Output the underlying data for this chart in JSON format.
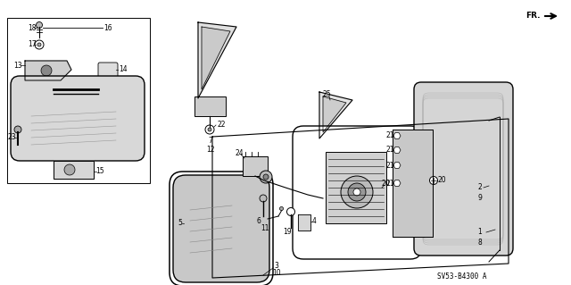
{
  "bg_color": "#ffffff",
  "line_color": "#000000",
  "diagram_code": "SV53-B4300 A",
  "fr_label": "FR."
}
